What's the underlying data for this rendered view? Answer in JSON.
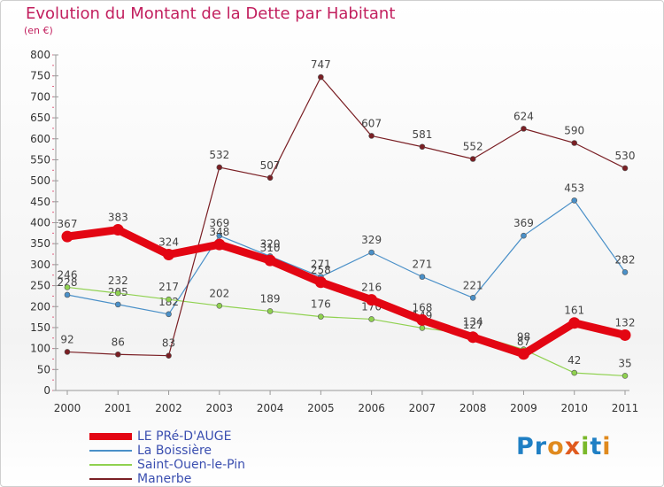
{
  "header": {
    "title": "Evolution du Montant de la Dette par Habitant",
    "subtitle": "(en €)"
  },
  "logo": {
    "text": "Proxiti"
  },
  "colors": {
    "title": "#c21f5e",
    "legend_text": "#3b4fb0",
    "axis": "#999999"
  },
  "chart_data": {
    "type": "line",
    "x": [
      "2000",
      "2001",
      "2002",
      "2003",
      "2004",
      "2005",
      "2006",
      "2007",
      "2008",
      "2009",
      "2010",
      "2011"
    ],
    "ylim": [
      0,
      800
    ],
    "yticks": [
      0,
      50,
      100,
      150,
      200,
      250,
      300,
      350,
      400,
      450,
      500,
      550,
      600,
      650,
      700,
      750,
      800
    ],
    "grid": false,
    "legend_position": "bottom-left",
    "series": [
      {
        "name": "LE PRé-D'AUGE",
        "color": "#e30613",
        "emphasis": true,
        "values": [
          367,
          383,
          324,
          348,
          310,
          258,
          216,
          168,
          127,
          87,
          161,
          132
        ]
      },
      {
        "name": "La Boissière",
        "color": "#4a90c8",
        "emphasis": false,
        "values": [
          228,
          205,
          182,
          369,
          320,
          271,
          329,
          271,
          221,
          369,
          453,
          282
        ]
      },
      {
        "name": "Saint-Ouen-le-Pin",
        "color": "#8fd14f",
        "emphasis": false,
        "values": [
          246,
          232,
          217,
          202,
          189,
          176,
          170,
          149,
          134,
          98,
          42,
          35
        ]
      },
      {
        "name": "Manerbe",
        "color": "#7a1f24",
        "emphasis": false,
        "values": [
          92,
          86,
          83,
          532,
          507,
          747,
          607,
          581,
          552,
          624,
          590,
          530
        ]
      }
    ]
  }
}
